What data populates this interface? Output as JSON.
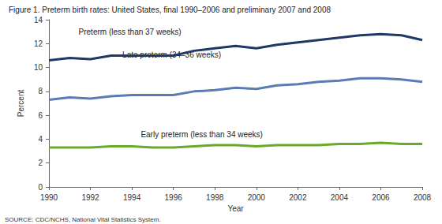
{
  "chart_data": {
    "type": "line",
    "title": "Figure 1. Preterm birth rates: United States, final 1990–2006 and preliminary 2007 and 2008",
    "source": "SOURCE: CDC/NCHS, National Vital Statistics System.",
    "xlabel": "Year",
    "ylabel": "Percent",
    "x": [
      1990,
      1991,
      1992,
      1993,
      1994,
      1995,
      1996,
      1997,
      1998,
      1999,
      2000,
      2001,
      2002,
      2003,
      2004,
      2005,
      2006,
      2007,
      2008
    ],
    "series": [
      {
        "name": "Preterm (less than 37 weeks)",
        "color": "#1f3864",
        "values": [
          10.6,
          10.8,
          10.7,
          11.0,
          11.0,
          11.0,
          11.0,
          11.4,
          11.6,
          11.8,
          11.6,
          11.9,
          12.1,
          12.3,
          12.5,
          12.7,
          12.8,
          12.7,
          12.3
        ]
      },
      {
        "name": "Late preterm (34–36 weeks)",
        "color": "#5b7bb5",
        "values": [
          7.3,
          7.5,
          7.4,
          7.6,
          7.7,
          7.7,
          7.7,
          8.0,
          8.1,
          8.3,
          8.2,
          8.5,
          8.6,
          8.8,
          8.9,
          9.1,
          9.1,
          9.0,
          8.8
        ]
      },
      {
        "name": "Early preterm (less than 34 weeks)",
        "color": "#6aaa2a",
        "values": [
          3.3,
          3.3,
          3.3,
          3.4,
          3.4,
          3.3,
          3.3,
          3.4,
          3.5,
          3.5,
          3.4,
          3.5,
          3.5,
          3.5,
          3.6,
          3.6,
          3.7,
          3.6,
          3.6
        ]
      }
    ],
    "xlim": [
      1990,
      2008
    ],
    "xticks": [
      1990,
      1992,
      1994,
      1996,
      1998,
      2000,
      2002,
      2004,
      2006,
      2008
    ],
    "ylim": [
      0,
      14
    ],
    "yticks": [
      0,
      2,
      4,
      6,
      8,
      10,
      12,
      14
    ],
    "grid": false
  }
}
